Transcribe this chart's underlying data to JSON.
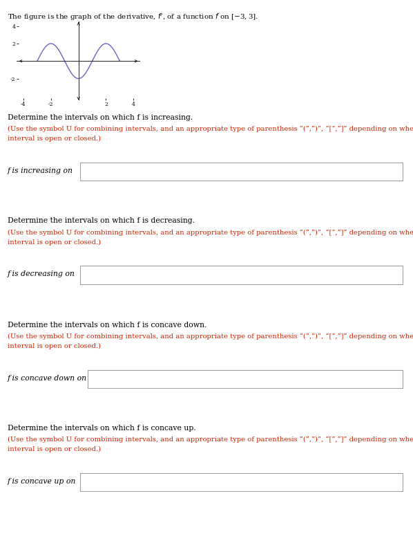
{
  "title_line": "The figure is the graph of the derivative, f′, of a function f on [−3, 3].",
  "graph_xlim": [
    -4.5,
    4.5
  ],
  "graph_ylim": [
    -4.5,
    4.5
  ],
  "curve_color": "#6666bb",
  "axis_color": "black",
  "background_color": "white",
  "text_color": "black",
  "label_color": "#cc2200",
  "sections": [
    {
      "header": "Determine the intervals on which f is increasing.",
      "instruction1": "(Use the symbol U for combining intervals, and an appropriate type of parenthesis “(”,”)”, “[”,”]” depending on whether the",
      "instruction2": "interval is open or closed.)",
      "label": "f is increasing on"
    },
    {
      "header": "Determine the intervals on which f is decreasing.",
      "instruction1": "(Use the symbol U for combining intervals, and an appropriate type of parenthesis “(”,”)”, “[”,”]” depending on whether the",
      "instruction2": "interval is open or closed.)",
      "label": "f is decreasing on"
    },
    {
      "header": "Determine the intervals on which f is concave down.",
      "instruction1": "(Use the symbol U for combining intervals, and an appropriate type of parenthesis “(”,”)”, “[”,”]” depending on whether the",
      "instruction2": "interval is open or closed.)",
      "label": "f is concave down on"
    },
    {
      "header": "Determine the intervals on which f is concave up.",
      "instruction1": "(Use the symbol U for combining intervals, and an appropriate type of parenthesis “(”,”)”, “[”,”]” depending on whether the",
      "instruction2": "interval is open or closed.)",
      "label": "f is concave up on"
    }
  ]
}
